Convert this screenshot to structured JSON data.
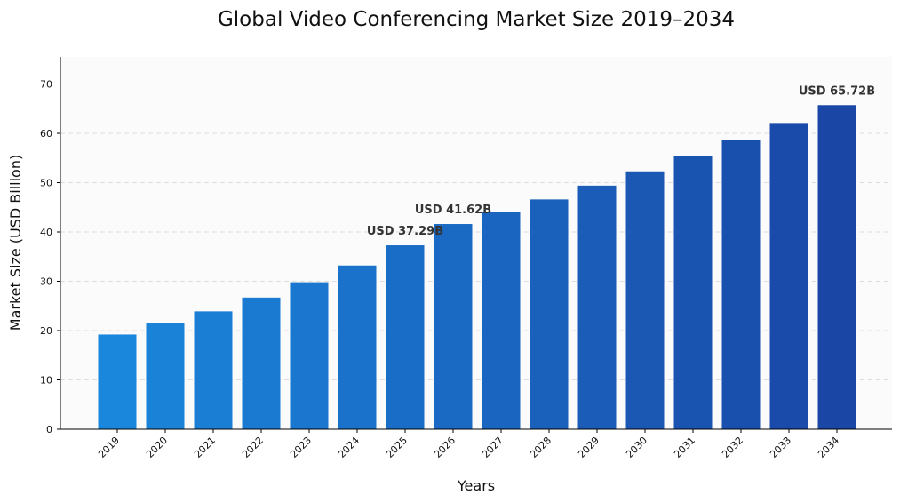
{
  "chart_data": {
    "type": "bar",
    "title": "Global Video Conferencing Market Size 2019–2034",
    "xlabel": "Years",
    "ylabel": "Market Size (USD Billion)",
    "categories": [
      "2019",
      "2020",
      "2021",
      "2022",
      "2023",
      "2024",
      "2025",
      "2026",
      "2027",
      "2028",
      "2029",
      "2030",
      "2031",
      "2032",
      "2033",
      "2034"
    ],
    "values": [
      19.2,
      21.5,
      23.9,
      26.7,
      29.8,
      33.2,
      37.29,
      41.62,
      44.1,
      46.6,
      49.4,
      52.3,
      55.5,
      58.7,
      62.1,
      65.72
    ],
    "ylim": [
      0,
      75.5
    ],
    "yticks": [
      0,
      10,
      20,
      30,
      40,
      50,
      60,
      70
    ],
    "grid": true,
    "annotations": [
      {
        "category": "2025",
        "text": "USD 37.29B"
      },
      {
        "category": "2026",
        "text": "USD 41.62B"
      },
      {
        "category": "2034",
        "text": "USD 65.72B"
      }
    ],
    "colors": {
      "bar_start": "#1a87dc",
      "bar_end": "#1a47a6",
      "plot_background": "#fbfbfb",
      "grid": "#dddddd",
      "axis": "#000000",
      "annotation_text": "#333333"
    }
  }
}
